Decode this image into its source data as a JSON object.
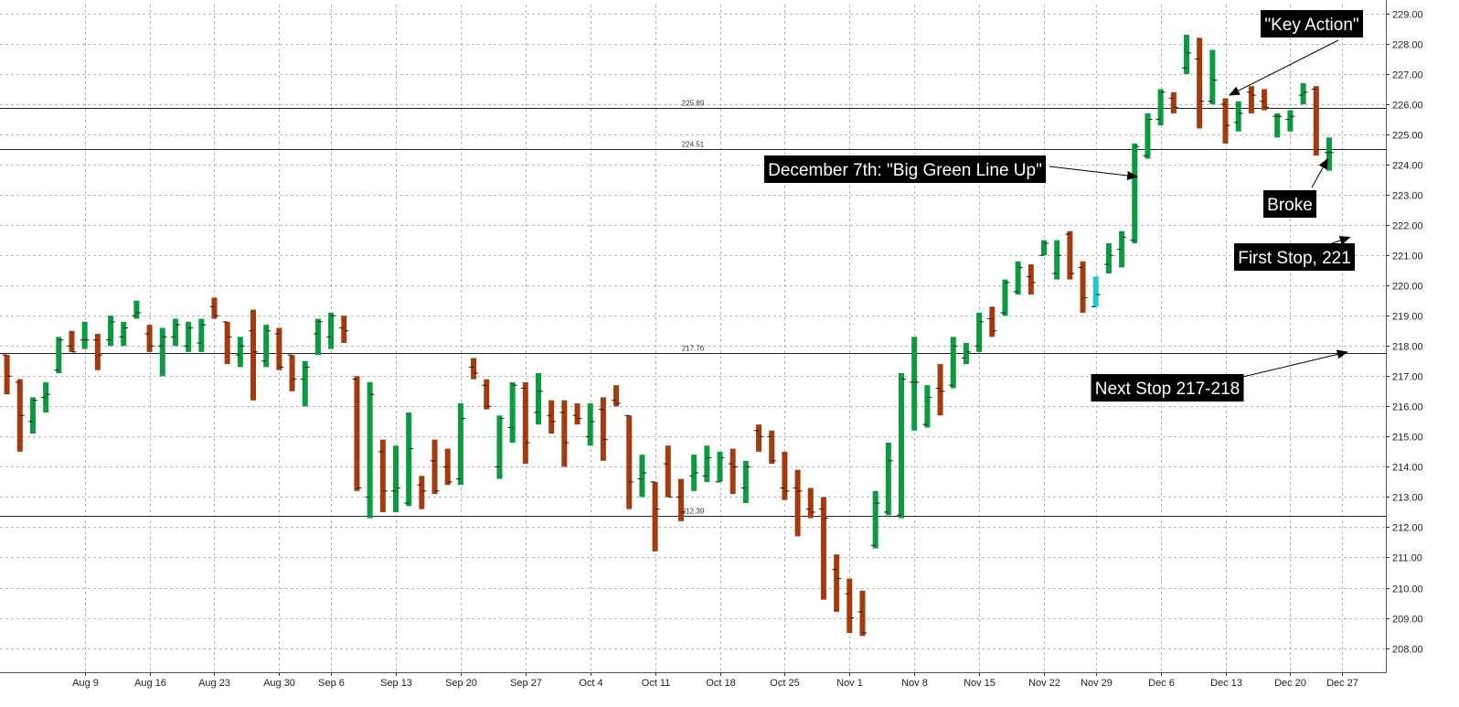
{
  "chart_data": {
    "type": "ohlc",
    "ylim": [
      207.2,
      229.3
    ],
    "grid": true,
    "y_ticks": [
      "208.00",
      "209.00",
      "210.00",
      "211.00",
      "212.00",
      "213.00",
      "214.00",
      "215.00",
      "216.00",
      "217.00",
      "218.00",
      "219.00",
      "220.00",
      "221.00",
      "222.00",
      "223.00",
      "224.00",
      "225.00",
      "226.00",
      "227.00",
      "228.00",
      "229.00"
    ],
    "x_ticks": [
      {
        "i": 6,
        "label": "Aug 9"
      },
      {
        "i": 11,
        "label": "Aug 16"
      },
      {
        "i": 16,
        "label": "Aug 23"
      },
      {
        "i": 21,
        "label": "Aug 30"
      },
      {
        "i": 25,
        "label": "Sep 6"
      },
      {
        "i": 30,
        "label": "Sep 13"
      },
      {
        "i": 35,
        "label": "Sep 20"
      },
      {
        "i": 40,
        "label": "Sep 27"
      },
      {
        "i": 45,
        "label": "Oct 4"
      },
      {
        "i": 50,
        "label": "Oct 11"
      },
      {
        "i": 55,
        "label": "Oct 18"
      },
      {
        "i": 60,
        "label": "Oct 25"
      },
      {
        "i": 65,
        "label": "Nov 1"
      },
      {
        "i": 70,
        "label": "Nov 8"
      },
      {
        "i": 75,
        "label": "Nov 15"
      },
      {
        "i": 80,
        "label": "Nov 22"
      },
      {
        "i": 84,
        "label": "Nov 29"
      },
      {
        "i": 89,
        "label": "Dec 6"
      },
      {
        "i": 94,
        "label": "Dec 13"
      },
      {
        "i": 99,
        "label": "Dec 20"
      },
      {
        "i": 103,
        "label": "Dec 27"
      }
    ],
    "bars": [
      {
        "i": 0,
        "o": 217.7,
        "h": 217.7,
        "l": 216.4,
        "c": 217.0
      },
      {
        "i": 1,
        "o": 216.8,
        "h": 216.9,
        "l": 214.5,
        "c": 215.7
      },
      {
        "i": 2,
        "o": 215.5,
        "h": 216.3,
        "l": 215.1,
        "c": 216.2
      },
      {
        "i": 3,
        "o": 216.3,
        "h": 216.8,
        "l": 215.8,
        "c": 216.4
      },
      {
        "i": 4,
        "o": 217.2,
        "h": 218.3,
        "l": 217.1,
        "c": 218.2
      },
      {
        "i": 5,
        "o": 218.0,
        "h": 218.5,
        "l": 217.8,
        "c": 217.8
      },
      {
        "i": 6,
        "o": 218.2,
        "h": 218.8,
        "l": 217.9,
        "c": 218.2
      },
      {
        "i": 7,
        "o": 218.2,
        "h": 218.4,
        "l": 217.2,
        "c": 217.7
      },
      {
        "i": 8,
        "o": 218.2,
        "h": 219.0,
        "l": 218.0,
        "c": 218.8
      },
      {
        "i": 9,
        "o": 218.3,
        "h": 218.8,
        "l": 218.0,
        "c": 218.6
      },
      {
        "i": 10,
        "o": 219.0,
        "h": 219.5,
        "l": 218.9,
        "c": 219.1
      },
      {
        "i": 11,
        "o": 218.4,
        "h": 218.7,
        "l": 217.8,
        "c": 218.0
      },
      {
        "i": 12,
        "o": 218.0,
        "h": 218.6,
        "l": 217.0,
        "c": 218.3
      },
      {
        "i": 13,
        "o": 218.3,
        "h": 218.9,
        "l": 218.0,
        "c": 218.7
      },
      {
        "i": 14,
        "o": 218.0,
        "h": 218.8,
        "l": 217.8,
        "c": 218.6
      },
      {
        "i": 15,
        "o": 218.1,
        "h": 218.9,
        "l": 217.8,
        "c": 218.7
      },
      {
        "i": 16,
        "o": 219.3,
        "h": 219.6,
        "l": 218.9,
        "c": 219.0
      },
      {
        "i": 17,
        "o": 218.8,
        "h": 218.8,
        "l": 217.4,
        "c": 218.3
      },
      {
        "i": 18,
        "o": 217.7,
        "h": 218.3,
        "l": 217.3,
        "c": 218.0
      },
      {
        "i": 19,
        "o": 218.5,
        "h": 219.2,
        "l": 216.2,
        "c": 217.8
      },
      {
        "i": 20,
        "o": 217.5,
        "h": 218.7,
        "l": 217.3,
        "c": 218.5
      },
      {
        "i": 21,
        "o": 218.4,
        "h": 218.6,
        "l": 217.2,
        "c": 217.3
      },
      {
        "i": 22,
        "o": 217.7,
        "h": 217.7,
        "l": 216.5,
        "c": 216.9
      },
      {
        "i": 23,
        "o": 216.9,
        "h": 217.5,
        "l": 216.0,
        "c": 217.3
      },
      {
        "i": 24,
        "o": 218.4,
        "h": 218.9,
        "l": 217.7,
        "c": 218.8
      },
      {
        "i": 25,
        "o": 218.3,
        "h": 219.1,
        "l": 217.9,
        "c": 219.0
      },
      {
        "i": 26,
        "o": 218.6,
        "h": 219.0,
        "l": 218.1,
        "c": 218.5
      },
      {
        "i": 27,
        "o": 216.9,
        "h": 217.0,
        "l": 213.2,
        "c": 213.3
      },
      {
        "i": 28,
        "o": 213.0,
        "h": 216.8,
        "l": 212.3,
        "c": 216.4
      },
      {
        "i": 29,
        "o": 214.5,
        "h": 214.9,
        "l": 212.5,
        "c": 213.2
      },
      {
        "i": 30,
        "o": 213.2,
        "h": 214.7,
        "l": 212.5,
        "c": 213.3
      },
      {
        "i": 31,
        "o": 212.8,
        "h": 215.8,
        "l": 212.7,
        "c": 214.6
      },
      {
        "i": 32,
        "o": 213.4,
        "h": 213.7,
        "l": 212.6,
        "c": 213.2
      },
      {
        "i": 33,
        "o": 214.2,
        "h": 214.9,
        "l": 213.1,
        "c": 213.2
      },
      {
        "i": 34,
        "o": 214.0,
        "h": 214.6,
        "l": 213.4,
        "c": 213.5
      },
      {
        "i": 35,
        "o": 213.6,
        "h": 216.1,
        "l": 213.4,
        "c": 215.6
      },
      {
        "i": 36,
        "o": 217.3,
        "h": 217.6,
        "l": 216.9,
        "c": 217.1
      },
      {
        "i": 37,
        "o": 216.7,
        "h": 216.9,
        "l": 215.9,
        "c": 216.0
      },
      {
        "i": 38,
        "o": 214.0,
        "h": 215.7,
        "l": 213.6,
        "c": 215.6
      },
      {
        "i": 39,
        "o": 215.3,
        "h": 216.8,
        "l": 214.8,
        "c": 216.7
      },
      {
        "i": 40,
        "o": 216.6,
        "h": 216.8,
        "l": 214.1,
        "c": 214.8
      },
      {
        "i": 41,
        "o": 215.8,
        "h": 217.1,
        "l": 215.4,
        "c": 216.5
      },
      {
        "i": 42,
        "o": 215.7,
        "h": 216.2,
        "l": 215.1,
        "c": 215.5
      },
      {
        "i": 43,
        "o": 215.8,
        "h": 216.2,
        "l": 214.0,
        "c": 214.8
      },
      {
        "i": 44,
        "o": 215.7,
        "h": 216.1,
        "l": 215.4,
        "c": 215.6
      },
      {
        "i": 45,
        "o": 215.0,
        "h": 216.1,
        "l": 214.7,
        "c": 215.5
      },
      {
        "i": 46,
        "o": 215.9,
        "h": 216.3,
        "l": 214.2,
        "c": 214.9
      },
      {
        "i": 47,
        "o": 216.2,
        "h": 216.7,
        "l": 216.0,
        "c": 216.1
      },
      {
        "i": 48,
        "o": 215.7,
        "h": 215.7,
        "l": 212.6,
        "c": 213.5
      },
      {
        "i": 49,
        "o": 213.6,
        "h": 214.4,
        "l": 213.0,
        "c": 213.8
      },
      {
        "i": 50,
        "o": 213.5,
        "h": 213.5,
        "l": 211.2,
        "c": 212.6
      },
      {
        "i": 51,
        "o": 214.1,
        "h": 214.7,
        "l": 213.0,
        "c": 213.0
      },
      {
        "i": 52,
        "o": 213.0,
        "h": 213.6,
        "l": 212.2,
        "c": 212.5
      },
      {
        "i": 53,
        "o": 213.7,
        "h": 214.4,
        "l": 213.2,
        "c": 213.8
      },
      {
        "i": 54,
        "o": 213.7,
        "h": 214.7,
        "l": 213.5,
        "c": 214.3
      },
      {
        "i": 55,
        "o": 213.5,
        "h": 214.5,
        "l": 213.5,
        "c": 214.3
      },
      {
        "i": 56,
        "o": 214.1,
        "h": 214.6,
        "l": 213.1,
        "c": 214.0
      },
      {
        "i": 57,
        "o": 213.3,
        "h": 214.2,
        "l": 212.8,
        "c": 214.0
      },
      {
        "i": 58,
        "o": 215.2,
        "h": 215.4,
        "l": 214.5,
        "c": 215.0
      },
      {
        "i": 59,
        "o": 215.0,
        "h": 215.2,
        "l": 214.1,
        "c": 214.2
      },
      {
        "i": 60,
        "o": 213.3,
        "h": 214.5,
        "l": 212.9,
        "c": 213.2
      },
      {
        "i": 61,
        "o": 213.3,
        "h": 213.9,
        "l": 211.7,
        "c": 213.2
      },
      {
        "i": 62,
        "o": 212.6,
        "h": 213.3,
        "l": 212.3,
        "c": 212.5
      },
      {
        "i": 63,
        "o": 212.6,
        "h": 213.0,
        "l": 209.6,
        "c": 212.3
      },
      {
        "i": 64,
        "o": 210.6,
        "h": 211.1,
        "l": 209.2,
        "c": 210.3
      },
      {
        "i": 65,
        "o": 209.8,
        "h": 210.3,
        "l": 208.5,
        "c": 209.0
      },
      {
        "i": 66,
        "o": 209.2,
        "h": 209.9,
        "l": 208.4,
        "c": 208.5
      },
      {
        "i": 67,
        "o": 211.4,
        "h": 213.2,
        "l": 211.3,
        "c": 212.8
      },
      {
        "i": 68,
        "o": 212.5,
        "h": 214.8,
        "l": 212.4,
        "c": 214.2
      },
      {
        "i": 69,
        "o": 212.4,
        "h": 217.1,
        "l": 212.3,
        "c": 216.9
      },
      {
        "i": 70,
        "o": 216.8,
        "h": 218.3,
        "l": 215.2,
        "c": 216.8
      },
      {
        "i": 71,
        "o": 215.4,
        "h": 216.7,
        "l": 215.3,
        "c": 216.3
      },
      {
        "i": 72,
        "o": 216.6,
        "h": 217.4,
        "l": 215.7,
        "c": 216.5
      },
      {
        "i": 73,
        "o": 216.7,
        "h": 218.3,
        "l": 216.6,
        "c": 218.0
      },
      {
        "i": 74,
        "o": 217.6,
        "h": 218.1,
        "l": 217.4,
        "c": 217.8
      },
      {
        "i": 75,
        "o": 218.0,
        "h": 219.1,
        "l": 217.8,
        "c": 218.8
      },
      {
        "i": 76,
        "o": 218.9,
        "h": 219.3,
        "l": 218.3,
        "c": 218.5
      },
      {
        "i": 77,
        "o": 219.1,
        "h": 220.2,
        "l": 219.0,
        "c": 220.1
      },
      {
        "i": 78,
        "o": 219.8,
        "h": 220.8,
        "l": 219.7,
        "c": 220.6
      },
      {
        "i": 79,
        "o": 220.3,
        "h": 220.7,
        "l": 219.7,
        "c": 220.1
      },
      {
        "i": 80,
        "o": 221.0,
        "h": 221.5,
        "l": 221.0,
        "c": 221.4
      },
      {
        "i": 81,
        "o": 220.4,
        "h": 221.5,
        "l": 220.2,
        "c": 221.0
      },
      {
        "i": 82,
        "o": 221.7,
        "h": 221.8,
        "l": 220.2,
        "c": 220.4
      },
      {
        "i": 83,
        "o": 220.6,
        "h": 220.8,
        "l": 219.1,
        "c": 219.6
      },
      {
        "i": 84,
        "o": 219.3,
        "h": 220.3,
        "l": 219.3,
        "c": 219.7
      },
      {
        "i": 85,
        "o": 220.7,
        "h": 221.4,
        "l": 220.4,
        "c": 221.0
      },
      {
        "i": 86,
        "o": 221.2,
        "h": 221.8,
        "l": 220.6,
        "c": 221.6
      },
      {
        "i": 87,
        "o": 221.5,
        "h": 224.7,
        "l": 221.4,
        "c": 224.6
      },
      {
        "i": 88,
        "o": 224.3,
        "h": 225.7,
        "l": 224.2,
        "c": 225.5
      },
      {
        "i": 89,
        "o": 225.5,
        "h": 226.5,
        "l": 225.3,
        "c": 226.4
      },
      {
        "i": 90,
        "o": 226.2,
        "h": 226.4,
        "l": 225.7,
        "c": 225.9
      },
      {
        "i": 91,
        "o": 227.2,
        "h": 228.3,
        "l": 227.0,
        "c": 227.7
      },
      {
        "i": 92,
        "o": 227.5,
        "h": 228.2,
        "l": 225.2,
        "c": 226.1
      },
      {
        "i": 93,
        "o": 226.1,
        "h": 227.8,
        "l": 226.0,
        "c": 226.8
      },
      {
        "i": 94,
        "o": 226.0,
        "h": 226.2,
        "l": 224.7,
        "c": 225.3
      },
      {
        "i": 95,
        "o": 225.4,
        "h": 226.1,
        "l": 225.1,
        "c": 225.7
      },
      {
        "i": 96,
        "o": 226.4,
        "h": 226.6,
        "l": 225.7,
        "c": 226.3
      },
      {
        "i": 97,
        "o": 226.1,
        "h": 226.5,
        "l": 225.8,
        "c": 225.9
      },
      {
        "i": 98,
        "o": 225.6,
        "h": 225.7,
        "l": 224.9,
        "c": 225.6
      },
      {
        "i": 99,
        "o": 225.5,
        "h": 225.8,
        "l": 225.1,
        "c": 225.6
      },
      {
        "i": 100,
        "o": 226.3,
        "h": 226.7,
        "l": 226.0,
        "c": 226.4
      },
      {
        "i": 101,
        "o": 226.5,
        "h": 226.6,
        "l": 224.3,
        "c": 224.5
      },
      {
        "i": 102,
        "o": 224.4,
        "h": 224.9,
        "l": 223.8,
        "c": 224.4
      }
    ],
    "highlight_bar": 84,
    "horizontal_lines": [
      {
        "value": 225.89,
        "label": "225.89"
      },
      {
        "value": 224.51,
        "label": "224.51"
      },
      {
        "value": 217.76,
        "label": "217.76"
      },
      {
        "value": 212.39,
        "label": "212.39"
      }
    ],
    "annotations": [
      {
        "text": "\"Key Action\"",
        "target_i": 94.3,
        "target_y": 226.3
      },
      {
        "text": "December 7th: \"Big Green Line Up\"",
        "target_i": 87.2,
        "target_y": 223.6
      },
      {
        "text": "Broke",
        "target_i": 101.9,
        "target_y": 224.2
      },
      {
        "text": "First Stop, 221",
        "target_i": 103.6,
        "target_y": 221.6
      },
      {
        "text": "Next Stop 217-218",
        "target_i": 103.4,
        "target_y": 217.8
      }
    ]
  },
  "colors": {
    "up": "#0a9a40",
    "down": "#a33b0f",
    "highlight": "#1cc9d6",
    "grid": "#b8b8b8",
    "level_line": "#222222",
    "callout_bg": "#000000",
    "callout_text": "#ffffff"
  }
}
